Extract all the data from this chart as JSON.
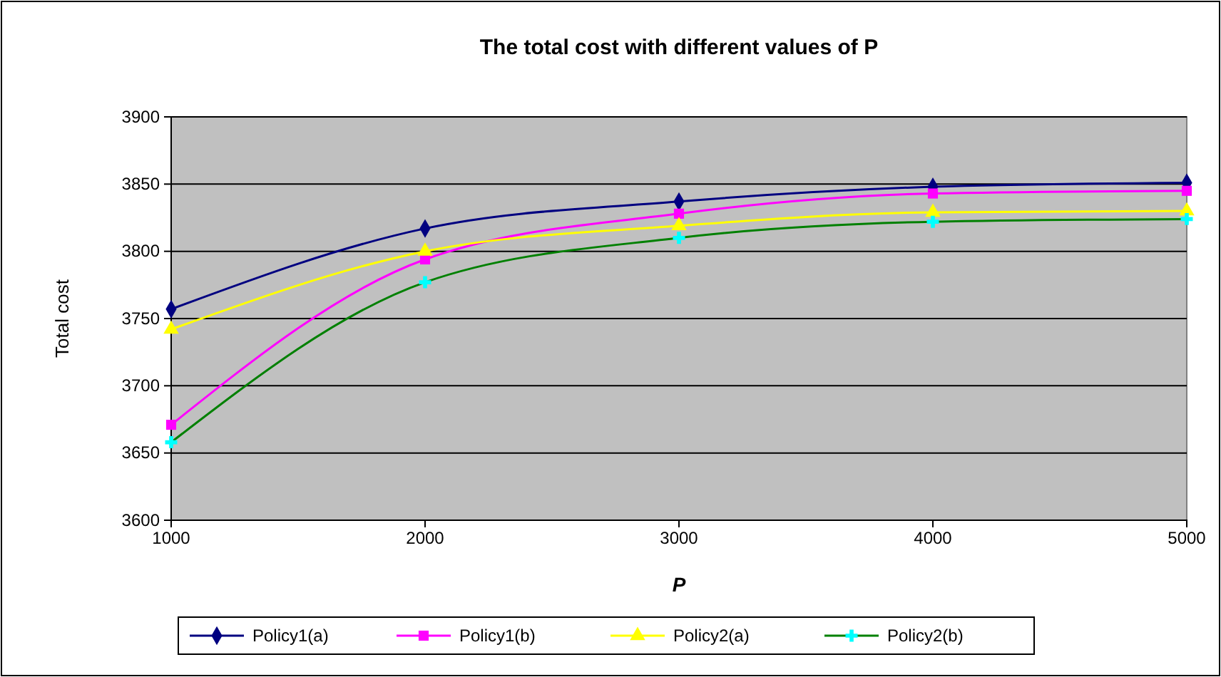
{
  "chart_data": {
    "type": "line",
    "title": "The total cost with different values of P",
    "xlabel": "P",
    "ylabel": "Total cost",
    "x": [
      1000,
      2000,
      3000,
      4000,
      5000
    ],
    "xlim": [
      1000,
      5000
    ],
    "xticks": [
      1000,
      2000,
      3000,
      4000,
      5000
    ],
    "ylim": [
      3600,
      3900
    ],
    "yticks": [
      3600,
      3650,
      3700,
      3750,
      3800,
      3850,
      3900
    ],
    "grid": "y",
    "legend": "bottom",
    "series": [
      {
        "name": "Policy1(a)",
        "color": "#000080",
        "marker": "diamond",
        "values": [
          3757,
          3817,
          3837,
          3848,
          3851
        ]
      },
      {
        "name": "Policy1(b)",
        "color": "#ff00ff",
        "marker": "square",
        "values": [
          3671,
          3794,
          3828,
          3843,
          3845
        ]
      },
      {
        "name": "Policy2(a)",
        "color": "#ffff00",
        "marker": "triangle",
        "values": [
          3742,
          3800,
          3819,
          3829,
          3830
        ]
      },
      {
        "name": "Policy2(b)",
        "color": "#008000",
        "marker": "cross",
        "values": [
          3658,
          3777,
          3810,
          3822,
          3824
        ]
      }
    ]
  }
}
